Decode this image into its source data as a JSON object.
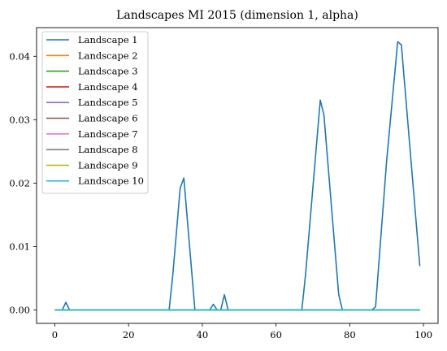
{
  "chart_data": {
    "type": "line",
    "title": "Landscapes MI 2015 (dimension 1, alpha)",
    "xlabel": "",
    "ylabel": "",
    "xlim": [
      -4.95,
      103.95
    ],
    "ylim": [
      -0.00212,
      0.04452
    ],
    "xticks": [
      0,
      20,
      40,
      60,
      80,
      100
    ],
    "yticks": [
      0.0,
      0.01,
      0.02,
      0.03,
      0.04
    ],
    "xtick_labels": [
      "0",
      "20",
      "40",
      "60",
      "80",
      "100"
    ],
    "ytick_labels": [
      "0.00",
      "0.01",
      "0.02",
      "0.03",
      "0.04"
    ],
    "grid": false,
    "legend_position": "top-left",
    "series": [
      {
        "name": "Landscape 1",
        "color": "#1f77b4",
        "points": [
          [
            0,
            0
          ],
          [
            2,
            0
          ],
          [
            3,
            0.0012
          ],
          [
            4,
            0
          ],
          [
            31,
            0
          ],
          [
            32,
            0.0055
          ],
          [
            34,
            0.0192
          ],
          [
            35,
            0.0208
          ],
          [
            38,
            0
          ],
          [
            42,
            0
          ],
          [
            43,
            0.0009
          ],
          [
            44,
            0
          ],
          [
            45,
            0
          ],
          [
            46,
            0.0024
          ],
          [
            47,
            0
          ],
          [
            67,
            0
          ],
          [
            68,
            0.0055
          ],
          [
            72,
            0.0331
          ],
          [
            73,
            0.0307
          ],
          [
            77,
            0.0024
          ],
          [
            78,
            0
          ],
          [
            86,
            0
          ],
          [
            87,
            0.0005
          ],
          [
            90,
            0.0235
          ],
          [
            93,
            0.0423
          ],
          [
            94,
            0.0418
          ],
          [
            99,
            0.0069
          ]
        ]
      },
      {
        "name": "Landscape 2",
        "color": "#ff7f0e",
        "points": [
          [
            0,
            0
          ],
          [
            99,
            0
          ]
        ]
      },
      {
        "name": "Landscape 3",
        "color": "#2ca02c",
        "points": [
          [
            0,
            0
          ],
          [
            99,
            0
          ]
        ]
      },
      {
        "name": "Landscape 4",
        "color": "#d62728",
        "points": [
          [
            0,
            0
          ],
          [
            99,
            0
          ]
        ]
      },
      {
        "name": "Landscape 5",
        "color": "#9467bd",
        "points": [
          [
            0,
            0
          ],
          [
            99,
            0
          ]
        ]
      },
      {
        "name": "Landscape 6",
        "color": "#8c564b",
        "points": [
          [
            0,
            0
          ],
          [
            99,
            0
          ]
        ]
      },
      {
        "name": "Landscape 7",
        "color": "#e377c2",
        "points": [
          [
            0,
            0
          ],
          [
            99,
            0
          ]
        ]
      },
      {
        "name": "Landscape 8",
        "color": "#7f7f7f",
        "points": [
          [
            0,
            0
          ],
          [
            99,
            0
          ]
        ]
      },
      {
        "name": "Landscape 9",
        "color": "#bcbd22",
        "points": [
          [
            0,
            0
          ],
          [
            99,
            0
          ]
        ]
      },
      {
        "name": "Landscape 10",
        "color": "#17becf",
        "points": [
          [
            0,
            0
          ],
          [
            99,
            0
          ]
        ]
      }
    ]
  }
}
